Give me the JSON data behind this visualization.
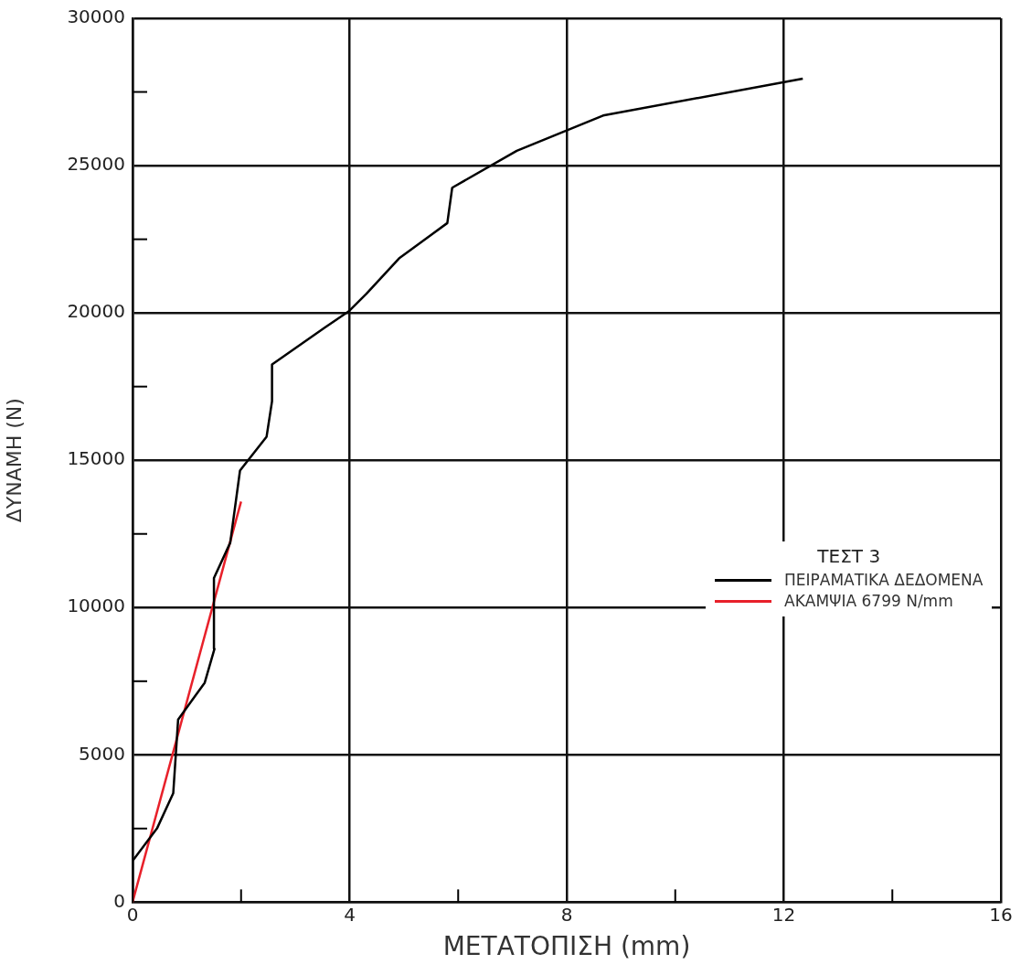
{
  "chart_data": {
    "type": "line",
    "xlabel": "ΜΕΤΑΤΟΠΙΣΗ (mm)",
    "ylabel": "ΔΥΝΑΜΗ (N)",
    "legend_title": "ΤΕΣΤ 3",
    "legend": "right",
    "grid": true,
    "marker": "none",
    "xlim": [
      0,
      16
    ],
    "xticks": [
      0,
      {
        "value": 2,
        "label": null
      },
      4,
      {
        "value": 6,
        "label": null
      },
      8,
      {
        "value": 10,
        "label": null
      },
      12,
      {
        "value": 14,
        "label": null
      },
      16
    ],
    "ylim": [
      0,
      30000
    ],
    "yticks": [
      0,
      {
        "value": 2500,
        "label": null
      },
      5000,
      {
        "value": 7500,
        "label": null
      },
      10000,
      {
        "value": 12500,
        "label": null
      },
      15000,
      {
        "value": 17500,
        "label": null
      },
      20000,
      {
        "value": 22500,
        "label": null
      },
      25000,
      {
        "value": 27500,
        "label": null
      },
      30000
    ],
    "series": [
      {
        "name": "ΠΕΙΡΑΜΑΤΙΚΑ ΔΕΔΟΜΕΝΑ",
        "color": "#000000",
        "x": [
          0,
          0,
          0.45,
          0.75,
          0.84,
          1.33,
          1.51,
          1.5,
          1.8,
          1.98,
          2.47,
          2.57,
          2.57,
          3.54,
          3.98,
          4.31,
          4.91,
          5.8,
          5.89,
          7.08,
          8.67,
          12.35
        ],
        "values": [
          0,
          1400,
          2500,
          3700,
          6200,
          7450,
          8600,
          11000,
          12200,
          14650,
          15800,
          17000,
          18250,
          19500,
          20050,
          20650,
          21850,
          23050,
          24250,
          25500,
          26700,
          27950
        ]
      },
      {
        "name": "ΑΚΑΜΨΙΑ 6799 N/mm",
        "color": "#e8202a",
        "x": [
          0,
          2.0
        ],
        "values": [
          0,
          13600
        ]
      }
    ]
  }
}
